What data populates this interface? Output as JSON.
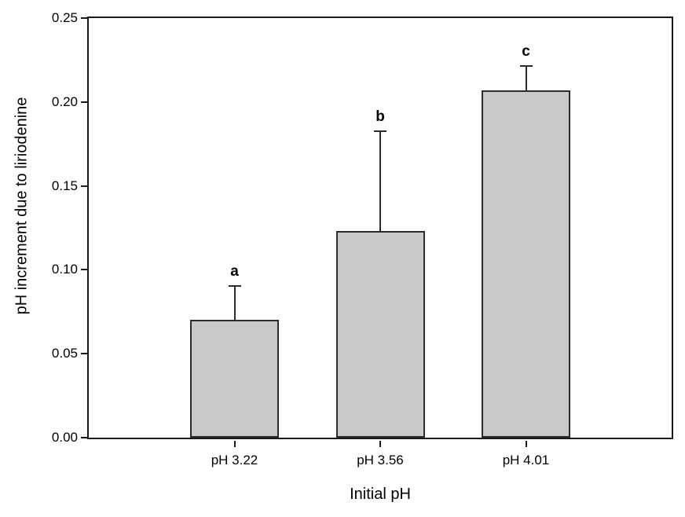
{
  "figure": {
    "background": "#ffffff"
  },
  "chart_data": {
    "type": "bar",
    "title": "",
    "xlabel": "Initial pH",
    "ylabel": "pH increment due to liriodenine",
    "categories": [
      "pH 3.22",
      "pH 3.56",
      "pH 4.01"
    ],
    "values": [
      0.07,
      0.123,
      0.207
    ],
    "error_plus": [
      0.021,
      0.06,
      0.015
    ],
    "bar_labels": [
      "a",
      "b",
      "c"
    ],
    "ylim": [
      0,
      0.25
    ],
    "ytick_step": 0.05,
    "ytick_labels": [
      "0.00",
      "0.05",
      "0.10",
      "0.15",
      "0.20",
      "0.25"
    ],
    "grid": false,
    "legend": null,
    "frame": true,
    "colors": {
      "bar_fill": "#c9c9c9",
      "bar_border": "#2b2b2b",
      "axis": "#1a1a1a",
      "text": "#000000"
    }
  }
}
